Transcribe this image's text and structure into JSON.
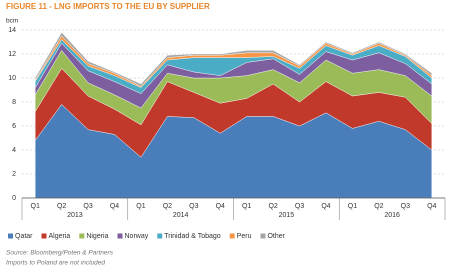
{
  "chart_data": {
    "type": "stacked_area",
    "title": "FIGURE 11 - LNG IMPORTS TO THE EU BY SUPPLIER",
    "y_label": "bcm",
    "categories": [
      "Q1",
      "Q2",
      "Q3",
      "Q4",
      "Q1",
      "Q2",
      "Q3",
      "Q4",
      "Q1",
      "Q2",
      "Q3",
      "Q4",
      "Q1",
      "Q2",
      "Q3",
      "Q4"
    ],
    "years": [
      "2013",
      "2014",
      "2015",
      "2016"
    ],
    "series": [
      {
        "name": "Qatar",
        "color": "#4a7ebb",
        "values": [
          4.8,
          7.8,
          5.7,
          5.3,
          3.4,
          6.8,
          6.7,
          5.4,
          6.8,
          6.8,
          6.0,
          7.1,
          5.8,
          6.4,
          5.7,
          4.0
        ]
      },
      {
        "name": "Algeria",
        "color": "#c0392b",
        "values": [
          2.4,
          3.0,
          2.8,
          2.1,
          2.7,
          2.9,
          2.1,
          2.5,
          1.5,
          2.7,
          2.0,
          2.6,
          2.7,
          2.4,
          2.7,
          2.2
        ]
      },
      {
        "name": "Nigeria",
        "color": "#9bbb59",
        "values": [
          1.4,
          1.5,
          1.1,
          1.2,
          1.4,
          0.7,
          1.2,
          2.1,
          1.9,
          1.2,
          1.6,
          1.8,
          1.9,
          1.9,
          1.8,
          2.3
        ]
      },
      {
        "name": "Norway",
        "color": "#7d5fa0",
        "values": [
          0.6,
          0.6,
          1.0,
          1.1,
          1.2,
          0.7,
          0.5,
          0.2,
          1.1,
          0.9,
          0.7,
          0.7,
          1.1,
          1.4,
          1.0,
          1.0
        ]
      },
      {
        "name": "Trinidad & Tobago",
        "color": "#4bacc6",
        "values": [
          0.5,
          0.3,
          0.4,
          0.5,
          0.5,
          0.4,
          1.2,
          1.5,
          0.4,
          0.2,
          0.5,
          0.5,
          0.4,
          0.6,
          0.6,
          0.5
        ]
      },
      {
        "name": "Peru",
        "color": "#f79646",
        "values": [
          0.1,
          0.3,
          0.2,
          0.2,
          0.1,
          0.2,
          0.2,
          0.2,
          0.4,
          0.3,
          0.2,
          0.2,
          0.1,
          0.2,
          0.1,
          0.2
        ]
      },
      {
        "name": "Other",
        "color": "#a5a5a5",
        "values": [
          0.2,
          0.3,
          0.2,
          0.1,
          0.2,
          0.2,
          0.1,
          0.1,
          0.2,
          0.2,
          0.1,
          0.1,
          0.1,
          0.1,
          0.1,
          0.2
        ]
      }
    ],
    "ylim": [
      0,
      14
    ],
    "yticks": [
      0,
      2,
      4,
      6,
      8,
      10,
      12,
      14
    ],
    "grid": true,
    "legend": "bottom",
    "source": "Source: Bloomberg/Poten & Partners",
    "note": "Imports to Poland are not included"
  }
}
